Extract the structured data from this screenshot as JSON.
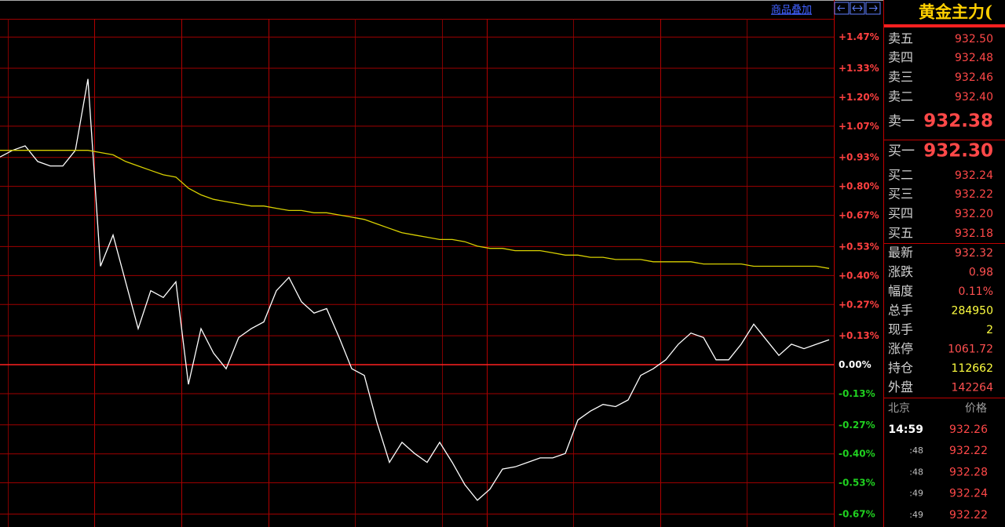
{
  "header": {
    "overlay_link": "商品叠加",
    "instrument": "黄金主力("
  },
  "chart_data": {
    "type": "line",
    "ylim": [
      -0.73,
      1.55
    ],
    "yticks": [
      {
        "value": 1.47,
        "label": "+1.47%"
      },
      {
        "value": 1.33,
        "label": "+1.33%"
      },
      {
        "value": 1.2,
        "label": "+1.20%"
      },
      {
        "value": 1.07,
        "label": "+1.07%"
      },
      {
        "value": 0.93,
        "label": "+0.93%"
      },
      {
        "value": 0.8,
        "label": "+0.80%"
      },
      {
        "value": 0.67,
        "label": "+0.67%"
      },
      {
        "value": 0.53,
        "label": "+0.53%"
      },
      {
        "value": 0.4,
        "label": "+0.40%"
      },
      {
        "value": 0.27,
        "label": "+0.27%"
      },
      {
        "value": 0.13,
        "label": "+0.13%"
      },
      {
        "value": 0,
        "label": "0.00%"
      },
      {
        "value": -0.13,
        "label": "-0.13%"
      },
      {
        "value": -0.27,
        "label": "-0.27%"
      },
      {
        "value": -0.4,
        "label": "-0.40%"
      },
      {
        "value": -0.53,
        "label": "-0.53%"
      },
      {
        "value": -0.67,
        "label": "-0.67%"
      }
    ],
    "grid": true,
    "series": [
      {
        "color": "#ffffff",
        "values": [
          0.93,
          0.96,
          0.98,
          0.91,
          0.89,
          0.89,
          0.96,
          1.28,
          0.44,
          0.58,
          0.37,
          0.16,
          0.33,
          0.3,
          0.37,
          -0.09,
          0.16,
          0.05,
          -0.02,
          0.12,
          0.16,
          0.19,
          0.33,
          0.39,
          0.28,
          0.23,
          0.25,
          0.12,
          -0.02,
          -0.05,
          -0.26,
          -0.44,
          -0.35,
          -0.4,
          -0.44,
          -0.35,
          -0.44,
          -0.54,
          -0.61,
          -0.56,
          -0.47,
          -0.46,
          -0.44,
          -0.42,
          -0.42,
          -0.4,
          -0.25,
          -0.21,
          -0.18,
          -0.19,
          -0.16,
          -0.05,
          -0.02,
          0.02,
          0.09,
          0.14,
          0.12,
          0.02,
          0.02,
          0.09,
          0.18,
          0.11,
          0.04,
          0.09,
          0.07,
          0.09,
          0.11
        ]
      },
      {
        "color": "#d8d000",
        "values": [
          0.96,
          0.96,
          0.96,
          0.96,
          0.96,
          0.96,
          0.96,
          0.96,
          0.95,
          0.94,
          0.91,
          0.89,
          0.87,
          0.85,
          0.84,
          0.79,
          0.76,
          0.74,
          0.73,
          0.72,
          0.71,
          0.71,
          0.7,
          0.69,
          0.69,
          0.68,
          0.68,
          0.67,
          0.66,
          0.65,
          0.63,
          0.61,
          0.59,
          0.58,
          0.57,
          0.56,
          0.56,
          0.55,
          0.53,
          0.52,
          0.52,
          0.51,
          0.51,
          0.51,
          0.5,
          0.49,
          0.49,
          0.48,
          0.48,
          0.47,
          0.47,
          0.47,
          0.46,
          0.46,
          0.46,
          0.46,
          0.45,
          0.45,
          0.45,
          0.45,
          0.44,
          0.44,
          0.44,
          0.44,
          0.44,
          0.44,
          0.43
        ]
      }
    ]
  },
  "asks": [
    {
      "label": "卖五",
      "price": "932.50"
    },
    {
      "label": "卖四",
      "price": "932.48"
    },
    {
      "label": "卖三",
      "price": "932.46"
    },
    {
      "label": "卖二",
      "price": "932.40"
    },
    {
      "label": "卖一",
      "price": "932.38"
    }
  ],
  "bids": [
    {
      "label": "买一",
      "price": "932.30"
    },
    {
      "label": "买二",
      "price": "932.24"
    },
    {
      "label": "买三",
      "price": "932.22"
    },
    {
      "label": "买四",
      "price": "932.20"
    },
    {
      "label": "买五",
      "price": "932.18"
    }
  ],
  "stats": [
    {
      "label": "最新",
      "value": "932.32",
      "color": "#ff5050"
    },
    {
      "label": "涨跌",
      "value": "0.98",
      "color": "#ff5050"
    },
    {
      "label": "幅度",
      "value": "0.11%",
      "color": "#ff5050"
    },
    {
      "label": "总手",
      "value": "284950",
      "color": "#ffff40"
    },
    {
      "label": "现手",
      "value": "2",
      "color": "#ffff40"
    },
    {
      "label": "涨停",
      "value": "1061.72",
      "color": "#ff5050"
    },
    {
      "label": "持仓",
      "value": "112662",
      "color": "#ffff40"
    },
    {
      "label": "外盘",
      "value": "142264",
      "color": "#ff5050"
    }
  ],
  "trades_header": [
    "北京",
    "价格"
  ],
  "trades": [
    {
      "time": "14:59",
      "price": "932.26"
    },
    {
      "time": ":48",
      "price": "932.22"
    },
    {
      "time": ":48",
      "price": "932.28"
    },
    {
      "time": ":49",
      "price": "932.24"
    },
    {
      "time": ":49",
      "price": "932.22"
    }
  ]
}
